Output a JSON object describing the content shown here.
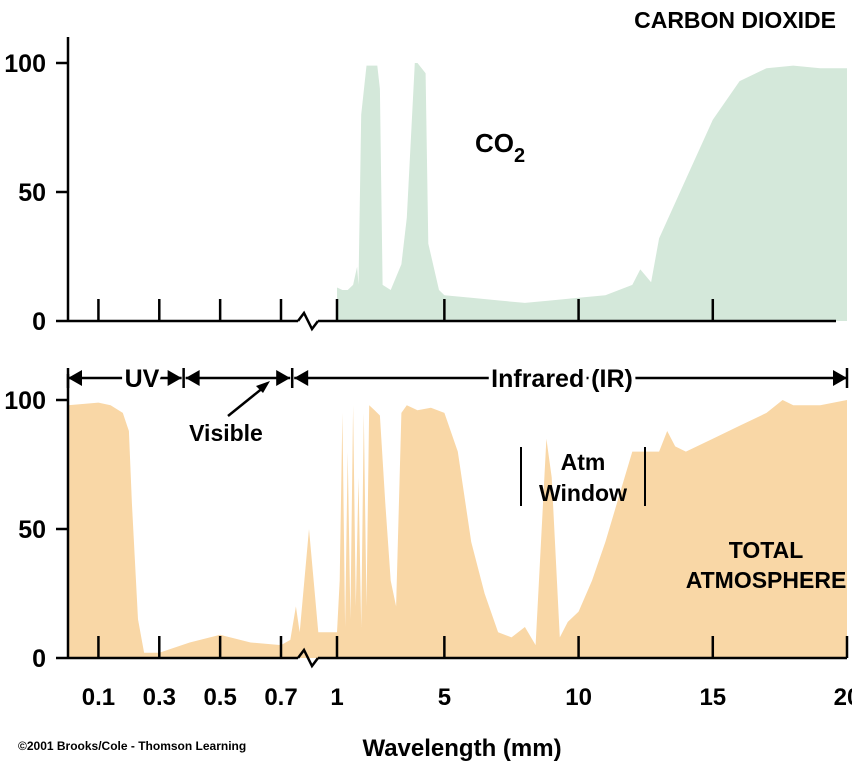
{
  "copyright": "©2001 Brooks/Cole - Thomson Learning",
  "xlabel": "Wavelength (mm)",
  "x_tick_labels": [
    "0.1",
    "0.3",
    "0.5",
    "0.7",
    "1",
    "5",
    "10",
    "15",
    "20"
  ],
  "colors": {
    "co2_fill": "#d4e8da",
    "total_fill": "#f9d7a6",
    "axis": "#000000"
  },
  "chart_data": [
    {
      "type": "area",
      "title": "CARBON DIOXIDE",
      "series": [
        {
          "name": "CO2",
          "label_main": "CO",
          "label_sub": "2",
          "x": [
            1.0,
            1.2,
            1.4,
            1.6,
            1.75,
            1.8,
            1.9,
            2.1,
            2.2,
            2.5,
            2.6,
            2.7,
            3.0,
            3.4,
            3.6,
            3.9,
            4.0,
            4.3,
            4.4,
            4.8,
            5.0,
            6,
            7,
            8,
            9,
            10,
            11,
            12,
            12.3,
            12.7,
            13,
            14,
            15,
            16,
            17,
            18,
            19,
            20
          ],
          "y": [
            13,
            12,
            12,
            14,
            21,
            14,
            80,
            99,
            99,
            99,
            90,
            14,
            12,
            22,
            40,
            100,
            100,
            96,
            30,
            12,
            10,
            9,
            8,
            7,
            8,
            9,
            10,
            14,
            20,
            15,
            32,
            55,
            78,
            93,
            98,
            99,
            98,
            98
          ]
        }
      ],
      "ylim": [
        0,
        100
      ],
      "xlim": [
        0.0,
        20
      ],
      "yticks": [
        "0",
        "50",
        "100"
      ],
      "grid": false,
      "legend": "none"
    },
    {
      "type": "area",
      "title": "",
      "series": [
        {
          "name": "TOTAL ATMOSPHERE",
          "label_line1": "TOTAL",
          "label_line2": "ATMOSPHERE",
          "x": [
            0.0,
            0.1,
            0.14,
            0.18,
            0.2,
            0.21,
            0.23,
            0.25,
            0.3,
            0.4,
            0.5,
            0.6,
            0.7,
            0.75,
            0.78,
            0.8,
            0.85,
            0.9,
            1.0,
            1.1,
            1.2,
            1.3,
            1.4,
            1.5,
            1.6,
            1.7,
            1.8,
            1.9,
            2.0,
            2.1,
            2.2,
            2.4,
            2.6,
            2.8,
            3.0,
            3.2,
            3.4,
            3.6,
            3.8,
            4.0,
            4.5,
            5.0,
            5.5,
            6.0,
            6.5,
            7.0,
            7.5,
            8.0,
            8.4,
            8.8,
            9.0,
            9.3,
            9.6,
            10.0,
            10.5,
            11.0,
            12.0,
            13.0,
            13.3,
            13.6,
            14.0,
            15.0,
            16.0,
            17.0,
            17.6,
            18.0,
            19.0,
            20.0
          ],
          "y": [
            98,
            99,
            98,
            95,
            88,
            60,
            15,
            2,
            2,
            6,
            9,
            6,
            5,
            7,
            20,
            10,
            50,
            10,
            10,
            30,
            95,
            12,
            80,
            15,
            98,
            20,
            70,
            12,
            95,
            20,
            98,
            96,
            94,
            60,
            30,
            20,
            95,
            98,
            97,
            96,
            97,
            95,
            80,
            45,
            25,
            10,
            8,
            12,
            5,
            85,
            70,
            8,
            14,
            18,
            30,
            45,
            80,
            80,
            88,
            82,
            80,
            85,
            90,
            95,
            100,
            98,
            98,
            100
          ]
        }
      ],
      "ylim": [
        0,
        100
      ],
      "xlim": [
        0.0,
        20
      ],
      "yticks": [
        "0",
        "50",
        "100"
      ],
      "regions": [
        {
          "label": "UV",
          "from": 0.0,
          "to": 0.38
        },
        {
          "label": "",
          "from": 0.38,
          "to": 0.76
        },
        {
          "label": "Infrared (IR)",
          "from": 0.76,
          "to": 20
        }
      ],
      "annotations": [
        {
          "text": "Visible"
        },
        {
          "text_line1": "Atm",
          "text_line2": "Window",
          "from": 7.0,
          "to": 12.0
        }
      ],
      "grid": false,
      "legend": "none"
    }
  ]
}
